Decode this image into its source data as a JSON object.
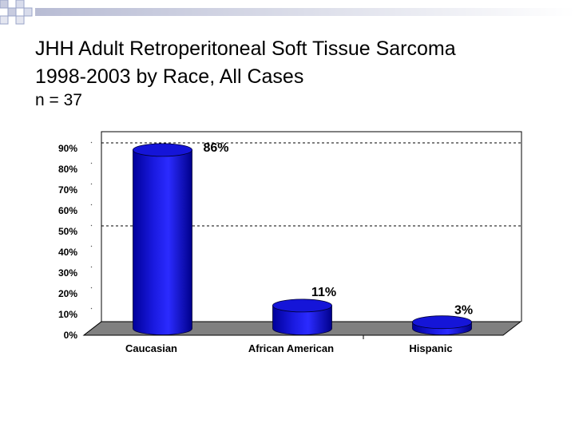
{
  "slide": {
    "title_line1": "JHH Adult Retroperitoneal Soft Tissue Sarcoma",
    "title_line2": "1998-2003 by Race, All Cases",
    "subtitle": "n = 37"
  },
  "colors": {
    "bar": "#1515d8",
    "bar_dark": "#00009a",
    "bar_top": "#3a3aff",
    "floor": "#808080",
    "gridline": "#000000"
  },
  "chart_data": {
    "type": "bar",
    "title": "",
    "xlabel": "",
    "ylabel": "",
    "categories": [
      "Caucasian",
      "African American",
      "Hispanic"
    ],
    "values": [
      86,
      11,
      3
    ],
    "data_labels": [
      "86%",
      "11%",
      "3%"
    ],
    "ylim": [
      0,
      90
    ],
    "yticks": [
      0,
      10,
      20,
      30,
      40,
      50,
      60,
      70,
      80,
      90
    ],
    "ytick_labels": [
      "0%",
      "10%",
      "20%",
      "30%",
      "40%",
      "50%",
      "60%",
      "70%",
      "80%",
      "90%"
    ],
    "gridlines_at": [
      50,
      90
    ],
    "legend": "none",
    "style": "3d-cylinder"
  }
}
